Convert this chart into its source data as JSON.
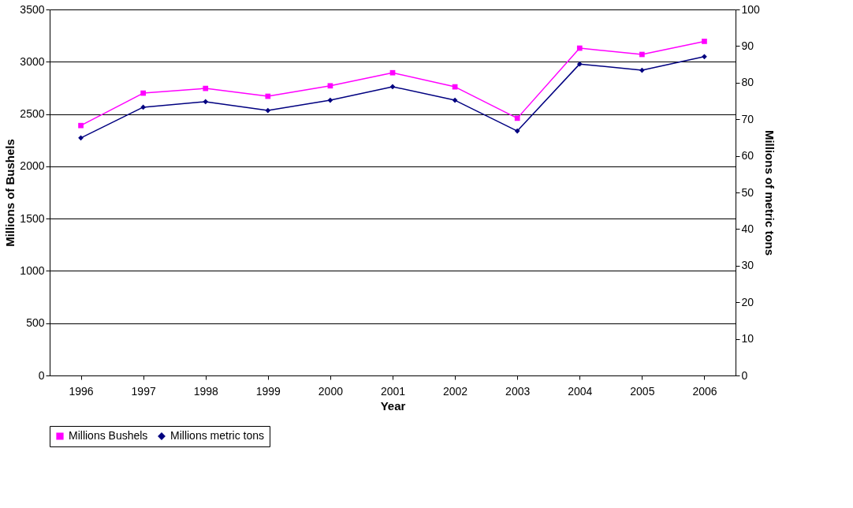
{
  "chart_data": {
    "type": "line",
    "xlabel": "Year",
    "ylabel": "Millions of Bushels",
    "y2label": "Millions of metric tons",
    "categories": [
      "1996",
      "1997",
      "1998",
      "1999",
      "2000",
      "2001",
      "2002",
      "2003",
      "2004",
      "2005",
      "2006"
    ],
    "series": [
      {
        "name": "Millions Bushels",
        "color": "#ff00ff",
        "marker": "square",
        "values": [
          2390,
          2700,
          2745,
          2670,
          2770,
          2895,
          2760,
          2460,
          3130,
          3070,
          3195
        ]
      },
      {
        "name": "Millions metric tons",
        "color": "#000080",
        "marker": "diamond",
        "axis": "y2",
        "values": [
          64.9,
          73.3,
          74.8,
          72.4,
          75.2,
          78.9,
          75.2,
          66.8,
          85.1,
          83.4,
          87.1
        ]
      }
    ],
    "ylim": [
      0,
      3500
    ],
    "yticks": [
      0,
      500,
      1000,
      1500,
      2000,
      2500,
      3000,
      3500
    ],
    "y2lim": [
      0,
      100
    ],
    "y2ticks": [
      0,
      10,
      20,
      30,
      40,
      50,
      60,
      70,
      80,
      90,
      100
    ],
    "grid": "y",
    "legend": "bottom"
  }
}
